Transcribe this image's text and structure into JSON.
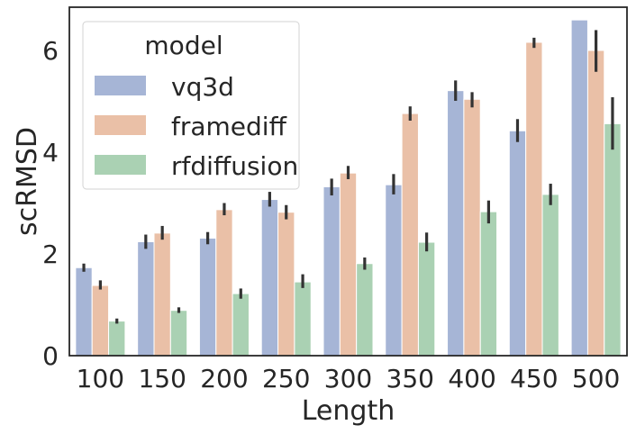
{
  "chart_data": {
    "type": "bar",
    "xlabel": "Length",
    "ylabel": "scRMSD",
    "categories": [
      "100",
      "150",
      "200",
      "250",
      "300",
      "350",
      "400",
      "450",
      "500"
    ],
    "ylim": [
      0,
      6.85
    ],
    "yticks": [
      0,
      2,
      4,
      6
    ],
    "ytick_labels": [
      "0",
      "2",
      "4",
      "6"
    ],
    "legend": {
      "title": "model",
      "position": "top-left"
    },
    "series": [
      {
        "name": "vq3d",
        "color": "#a6b5d6",
        "values": [
          1.73,
          2.24,
          2.31,
          3.07,
          3.32,
          3.36,
          5.21,
          4.42,
          6.6
        ],
        "err_low": [
          1.65,
          2.1,
          2.19,
          2.93,
          3.15,
          3.17,
          5.01,
          4.2,
          6.6
        ],
        "err_high": [
          1.81,
          2.38,
          2.43,
          3.22,
          3.48,
          3.57,
          5.41,
          4.65,
          6.6
        ]
      },
      {
        "name": "framediff",
        "color": "#eac0a7",
        "values": [
          1.38,
          2.41,
          2.87,
          2.82,
          3.59,
          4.76,
          5.04,
          6.16,
          6.0
        ],
        "err_low": [
          1.3,
          2.28,
          2.76,
          2.68,
          3.47,
          4.62,
          4.88,
          6.05,
          5.58
        ],
        "err_high": [
          1.48,
          2.55,
          3.0,
          2.96,
          3.73,
          4.9,
          5.18,
          6.25,
          6.4
        ]
      },
      {
        "name": "rfdiffusion",
        "color": "#aad1b3",
        "values": [
          0.68,
          0.89,
          1.22,
          1.45,
          1.81,
          2.23,
          2.83,
          3.17,
          4.56
        ],
        "err_low": [
          0.63,
          0.84,
          1.12,
          1.33,
          1.69,
          2.05,
          2.6,
          2.96,
          4.05
        ],
        "err_high": [
          0.73,
          0.95,
          1.32,
          1.6,
          1.93,
          2.42,
          3.05,
          3.38,
          5.08
        ]
      }
    ]
  }
}
